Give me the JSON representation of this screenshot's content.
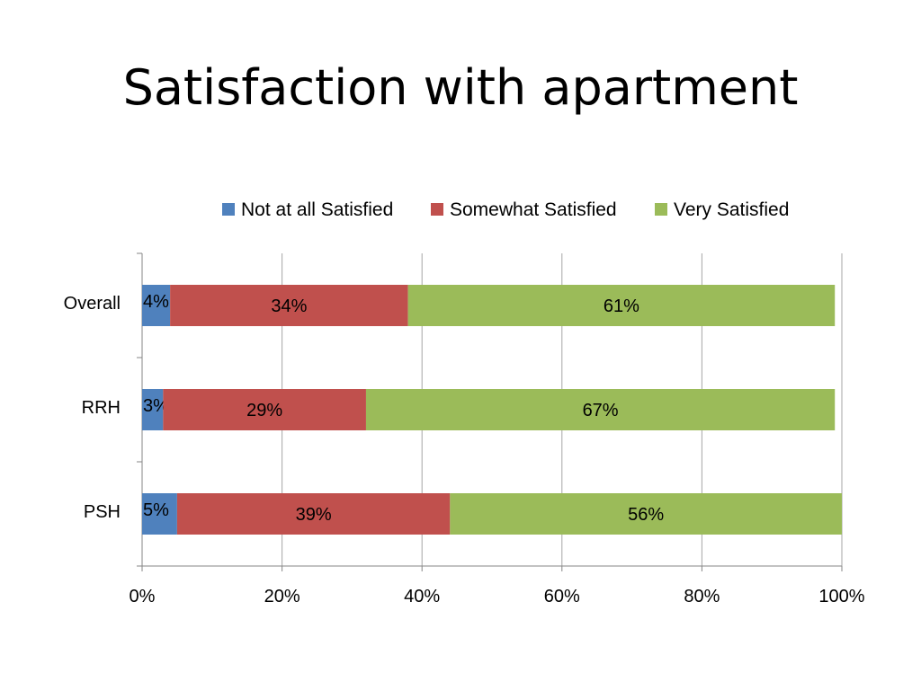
{
  "title": "Satisfaction with apartment",
  "colors": {
    "Not at all Satisfied": "#4f81bd",
    "Somewhat Satisfied": "#c0504d",
    "Very Satisfied": "#9bbb59",
    "grid": "#a6a6a6",
    "axis": "#868686"
  },
  "chart_data": {
    "type": "bar",
    "orientation": "horizontal",
    "stacked": true,
    "categories": [
      "Overall",
      "RRH",
      "PSH"
    ],
    "series": [
      {
        "name": "Not at all Satisfied",
        "values": [
          4,
          3,
          5
        ],
        "labels": [
          "4%",
          "3%",
          "5%"
        ]
      },
      {
        "name": "Somewhat Satisfied",
        "values": [
          34,
          29,
          39
        ],
        "labels": [
          "34%",
          "29%",
          "39%"
        ]
      },
      {
        "name": "Very Satisfied",
        "values": [
          61,
          67,
          56
        ],
        "labels": [
          "61%",
          "67%",
          "56%"
        ]
      }
    ],
    "xlim": [
      0,
      100
    ],
    "xticks": [
      "0%",
      "20%",
      "40%",
      "60%",
      "80%",
      "100%"
    ],
    "grid": true,
    "legend": "top"
  }
}
